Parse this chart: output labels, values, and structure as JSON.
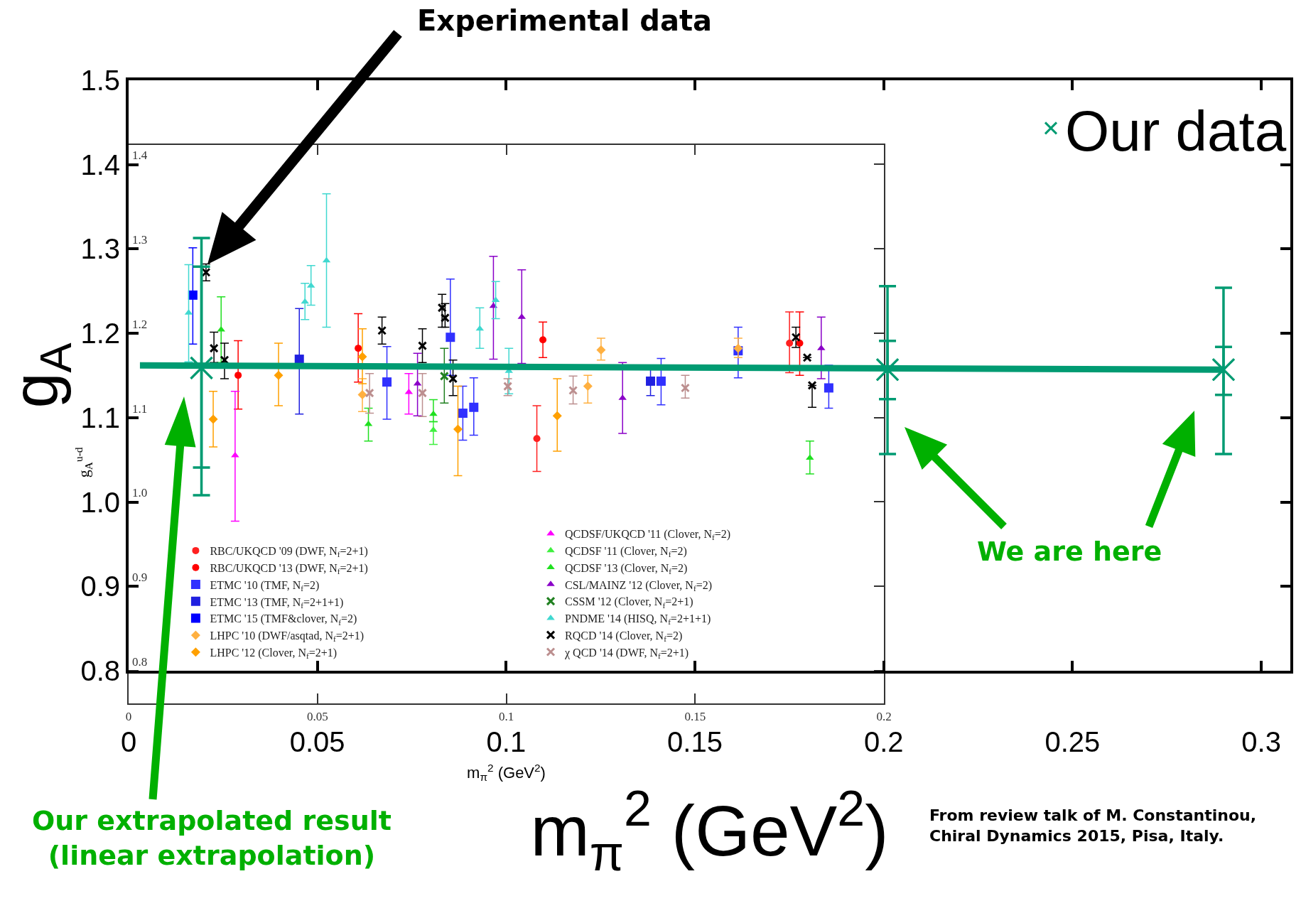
{
  "chart_data": [
    {
      "type": "scatter",
      "xlabel": "m$_{π}$$^{2}$ (GeV$^{2}$)",
      "ylabel": "g$_{A}$",
      "xlim": [
        0,
        0.3077
      ],
      "ylim": [
        0.8,
        1.5
      ],
      "xticks": [
        0,
        0.05,
        0.1,
        0.15,
        0.2,
        0.25,
        0.3
      ],
      "yticks": [
        0.8,
        0.9,
        {
          "value": 1,
          "label": "1.0"
        },
        1.1,
        1.2,
        1.3,
        1.4,
        1.5
      ],
      "grid": false,
      "legend": "top right",
      "series": [
        {
          "name": "Our data",
          "color": "#009b72",
          "marker": "cross",
          "x": [
            0.0193,
            0.201,
            0.29
          ],
          "values": [
            1.159,
            1.157,
            1.157
          ],
          "errors": [
            [
              1.008,
              1.313
            ],
            [
              1.057,
              1.256
            ],
            [
              1.057,
              1.254
            ]
          ]
        },
        {
          "color": "#009b72",
          "marker": "cross",
          "x": [
            0.0193,
            0.201,
            0.29
          ],
          "values": [
            1.159,
            1.157,
            1.157
          ],
          "errors": [
            [
              1.041,
              1.279
            ],
            [
              1.122,
              1.191
            ],
            [
              1.127,
              1.184
            ]
          ]
        },
        {
          "type": "line",
          "color": "#009b72",
          "x": [
            0.003,
            0.29
          ],
          "values": [
            1.162,
            1.157
          ]
        }
      ],
      "annotations": [
        "Experimental data",
        "Our extrapolated result\n(linear extrapolation)",
        "We are here",
        "From review talk of M. Constantinou,\nChiral Dynamics 2015, Pisa, Italy."
      ]
    },
    {
      "type": "scatter",
      "xlabel": "m$_{π}$$^{2}$ (GeV$^{2}$)",
      "ylabel": "g$_{A}$$^{u-d}$",
      "xlim": [
        0,
        0.2
      ],
      "ylim": [
        0.761,
        1.423
      ],
      "xticks": [
        0,
        0.05,
        0.1,
        0.15,
        0.2
      ],
      "yticks": [
        0.8,
        0.9,
        {
          "value": 1,
          "label": "1.0"
        },
        1.1,
        1.2,
        1.3,
        1.4
      ],
      "grid": false,
      "legend": "bottom",
      "series": [
        {
          "name": "RBC/UKQCD '09 (DWF, N$_{f}$=2+1)",
          "color": "#ff2020",
          "marker": "circle",
          "x": [
            0.1081,
            0.175
          ],
          "values": [
            1.075,
            1.188
          ],
          "errors": [
            [
              1.036,
              1.114
            ],
            [
              1.153,
              1.225
            ]
          ]
        },
        {
          "name": "RBC/UKQCD '13 (DWF, N$_{f}$=2+1)",
          "color": "#ff0000",
          "marker": "circle",
          "x": [
            0.029,
            0.0608,
            0.1097,
            0.1777
          ],
          "values": [
            1.15,
            1.182,
            1.192,
            1.188
          ],
          "errors": [
            [
              1.11,
              1.191
            ],
            [
              1.142,
              1.223
            ],
            [
              1.171,
              1.213
            ],
            [
              1.15,
              1.225
            ]
          ]
        },
        {
          "name": "ETMC '10 (TMF, N$_{f}$=2)",
          "color": "#3030ff",
          "marker": "square",
          "x": [
            0.0684,
            0.0852,
            0.0885,
            0.0914,
            0.141,
            0.1614,
            0.1854
          ],
          "values": [
            1.142,
            1.195,
            1.105,
            1.112,
            1.143,
            1.179,
            1.135
          ],
          "errors": [
            [
              1.098,
              1.184
            ],
            [
              1.15,
              1.264
            ],
            [
              1.073,
              1.137
            ],
            [
              1.079,
              1.147
            ],
            [
              1.115,
              1.17
            ],
            [
              1.147,
              1.207
            ],
            [
              1.111,
              1.162
            ]
          ]
        },
        {
          "name": "ETMC '13 (TMF, N$_{f}$=2+1+1)",
          "color": "#2020e0",
          "marker": "square",
          "x": [
            0.0452,
            0.1382
          ],
          "values": [
            1.169,
            1.143
          ],
          "errors": [
            [
              1.104,
              1.229
            ],
            [
              1.126,
              1.161
            ]
          ]
        },
        {
          "name": "ETMC '15 (TMF&clover, N$_{f}$=2)",
          "color": "#0000ff",
          "marker": "square",
          "x": [
            0.017
          ],
          "values": [
            1.245
          ],
          "errors": [
            [
              1.187,
              1.301
            ]
          ]
        },
        {
          "name": "LHPC '10 (DWF/asqtad, N$_{f}$=2+1)",
          "color": "#ffb040",
          "marker": "diamond",
          "x": [
            0.0619,
            0.1216,
            0.1251,
            0.1614
          ],
          "values": [
            1.127,
            1.137,
            1.18,
            1.182
          ],
          "errors": [
            [
              1.107,
              1.146
            ],
            [
              1.117,
              1.15
            ],
            [
              1.168,
              1.194
            ],
            [
              1.171,
              1.194
            ]
          ]
        },
        {
          "name": "LHPC '12 (Clover, N$_{f}$=2+1)",
          "color": "#ffa000",
          "marker": "diamond",
          "x": [
            0.0224,
            0.0397,
            0.0619,
            0.0872,
            0.1135
          ],
          "values": [
            1.098,
            1.15,
            1.172,
            1.086,
            1.102
          ],
          "errors": [
            [
              1.065,
              1.131
            ],
            [
              1.114,
              1.188
            ],
            [
              1.14,
              1.205
            ],
            [
              1.031,
              1.137
            ],
            [
              1.06,
              1.146
            ]
          ]
        },
        {
          "name": "QCDSF/UKQCD '11 (Clover, N$_{f}$=2)",
          "color": "#ff00ff",
          "marker": "triangle",
          "x": [
            0.0282,
            0.0742
          ],
          "values": [
            1.055,
            1.13
          ],
          "errors": [
            [
              0.977,
              1.131
            ],
            [
              1.104,
              1.152
            ]
          ]
        },
        {
          "name": "QCDSF '11 (Clover, N$_{f}$=2)",
          "color": "#40f040",
          "marker": "triangle",
          "x": [
            0.0807
          ],
          "values": [
            1.085
          ],
          "errors": [
            [
              1.068,
              1.095
            ]
          ]
        },
        {
          "name": "QCDSF '13 (Clover, N$_{f}$=2)",
          "color": "#20e020",
          "marker": "triangle",
          "x": [
            0.0245,
            0.0635,
            0.0807,
            0.1804
          ],
          "values": [
            1.204,
            1.092,
            1.104,
            1.052
          ],
          "errors": [
            [
              1.165,
              1.243
            ],
            [
              1.072,
              1.111
            ],
            [
              1.095,
              1.121
            ],
            [
              1.033,
              1.072
            ]
          ]
        },
        {
          "name": "CSL/MAINZ '12 (Clover, N$_{f}$=2)",
          "color": "#8a00c8",
          "marker": "triangle",
          "x": [
            0.0765,
            0.0966,
            0.1041,
            0.1308,
            0.1834
          ],
          "values": [
            1.14,
            1.232,
            1.219,
            1.123,
            1.182
          ],
          "errors": [
            [
              1.102,
              1.176
            ],
            [
              1.169,
              1.291
            ],
            [
              1.164,
              1.275
            ],
            [
              1.081,
              1.165
            ],
            [
              1.146,
              1.219
            ]
          ]
        },
        {
          "name": "CSSM '12 (Clover, N$_{f}$=2+1)",
          "color": "#208020",
          "marker": "cross",
          "x": [
            0.0836
          ],
          "values": [
            1.149
          ],
          "errors": [
            [
              1.117,
              1.182
            ]
          ]
        },
        {
          "name": "PNDME '14 (HISQ, N$_{f}$=2+1+1)",
          "color": "#40d8d0",
          "marker": "triangle",
          "x": [
            0.0159,
            0.0467,
            0.0483,
            0.0524,
            0.093,
            0.0972,
            0.1007
          ],
          "values": [
            1.224,
            1.237,
            1.256,
            1.286,
            1.205,
            1.239,
            1.155
          ],
          "errors": [
            [
              1.166,
              1.281
            ],
            [
              1.216,
              1.259
            ],
            [
              1.233,
              1.28
            ],
            [
              1.207,
              1.365
            ],
            [
              1.182,
              1.23
            ],
            [
              1.217,
              1.261
            ],
            [
              1.128,
              1.182
            ]
          ]
        },
        {
          "name": "RQCD '14 (Clover, N$_{f}$=2)",
          "color": "#000000",
          "marker": "cross",
          "x": [
            0.0205,
            0.0226,
            0.0254,
            0.0671,
            0.0778,
            0.083,
            0.0838,
            0.0859,
            0.1767,
            0.1797,
            0.181
          ],
          "values": [
            1.272,
            1.182,
            1.168,
            1.203,
            1.185,
            1.23,
            1.218,
            1.146,
            1.195,
            1.171,
            1.138
          ],
          "errors": [
            [
              1.262,
              1.282
            ],
            [
              1.165,
              1.201
            ],
            [
              1.146,
              1.188
            ],
            [
              1.187,
              1.219
            ],
            [
              1.165,
              1.205
            ],
            [
              1.207,
              1.246
            ],
            [
              1.207,
              1.235
            ],
            [
              1.126,
              1.168
            ],
            [
              1.183,
              1.207
            ],
            null,
            [
              1.112,
              1.138
            ]
          ]
        },
        {
          "name": "χ QCD '14 (DWF, N$_{f}$=2+1)",
          "color": "#bc8f8f",
          "marker": "cross",
          "x": [
            0.0638,
            0.0778,
            0.1004,
            0.1177,
            0.1474
          ],
          "values": [
            1.129,
            1.129,
            1.137,
            1.132,
            1.135
          ],
          "errors": [
            [
              1.105,
              1.152
            ],
            [
              1.101,
              1.152
            ],
            [
              1.126,
              1.146
            ],
            [
              1.116,
              1.149
            ],
            [
              1.123,
              1.15
            ]
          ]
        }
      ]
    }
  ]
}
